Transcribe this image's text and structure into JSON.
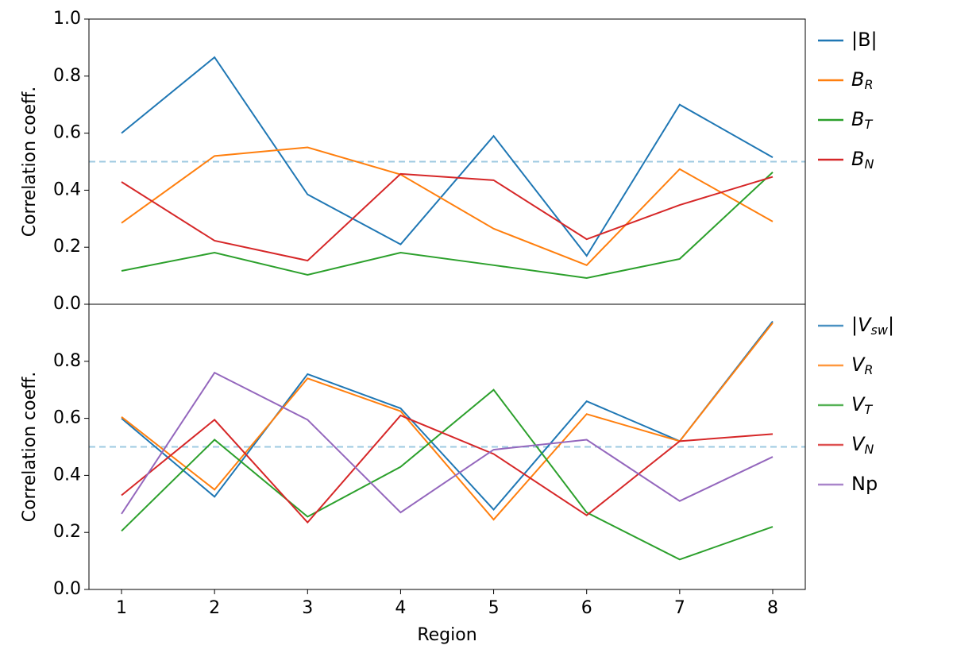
{
  "chart_data": [
    {
      "type": "line",
      "ylabel": "Correlation coeff.",
      "x": [
        1,
        2,
        3,
        4,
        5,
        6,
        7,
        8
      ],
      "xlim": [
        0.65,
        8.35
      ],
      "ylim": [
        0,
        1
      ],
      "yticks": [
        {
          "value": 0,
          "label": "0.0"
        },
        0.2,
        0.4,
        0.6,
        0.8,
        {
          "value": 1,
          "label": "1.0"
        }
      ],
      "hline": 0.5,
      "legend": "outside right",
      "series": [
        {
          "name": "|B|",
          "color": "#1f77b4",
          "values": [
            0.6,
            0.866,
            0.385,
            0.21,
            0.59,
            0.17,
            0.7,
            0.515
          ]
        },
        {
          "name": "B_{R}",
          "color": "#ff7f0e",
          "values": [
            0.285,
            0.52,
            0.55,
            0.455,
            0.265,
            0.137,
            0.474,
            0.29
          ]
        },
        {
          "name": "B_{T}",
          "color": "#2ca02c",
          "values": [
            0.117,
            0.181,
            0.103,
            0.181,
            0.137,
            0.092,
            0.159,
            0.463
          ]
        },
        {
          "name": "B_{N}",
          "color": "#d62728",
          "values": [
            0.429,
            0.223,
            0.153,
            0.457,
            0.435,
            0.228,
            0.348,
            0.447
          ]
        }
      ]
    },
    {
      "type": "line",
      "ylabel": "Correlation coeff.",
      "xlabel": "Region",
      "x": [
        1,
        2,
        3,
        4,
        5,
        6,
        7,
        8
      ],
      "xlim": [
        0.65,
        8.35
      ],
      "xticks": [
        1,
        2,
        3,
        4,
        5,
        6,
        7,
        8
      ],
      "ylim": [
        0,
        1
      ],
      "yticks": [
        {
          "value": 0,
          "label": "0.0"
        },
        0.2,
        0.4,
        0.6,
        0.8
      ],
      "hline": 0.5,
      "legend": "outside right",
      "series": [
        {
          "name": "|V_{sw}|",
          "color": "#1f77b4",
          "values": [
            0.6,
            0.325,
            0.755,
            0.635,
            0.28,
            0.66,
            0.52,
            0.94
          ]
        },
        {
          "name": "V_{R}",
          "color": "#ff7f0e",
          "values": [
            0.605,
            0.35,
            0.74,
            0.625,
            0.245,
            0.615,
            0.52,
            0.935
          ]
        },
        {
          "name": "V_{T}",
          "color": "#2ca02c",
          "values": [
            0.205,
            0.525,
            0.255,
            0.43,
            0.7,
            0.27,
            0.105,
            0.22
          ]
        },
        {
          "name": "V_{N}",
          "color": "#d62728",
          "values": [
            0.33,
            0.595,
            0.235,
            0.61,
            0.475,
            0.26,
            0.52,
            0.545
          ]
        },
        {
          "name": "Np",
          "color": "#9467bd",
          "values": [
            0.265,
            0.76,
            0.595,
            0.27,
            0.49,
            0.525,
            0.31,
            0.465
          ]
        }
      ]
    }
  ]
}
